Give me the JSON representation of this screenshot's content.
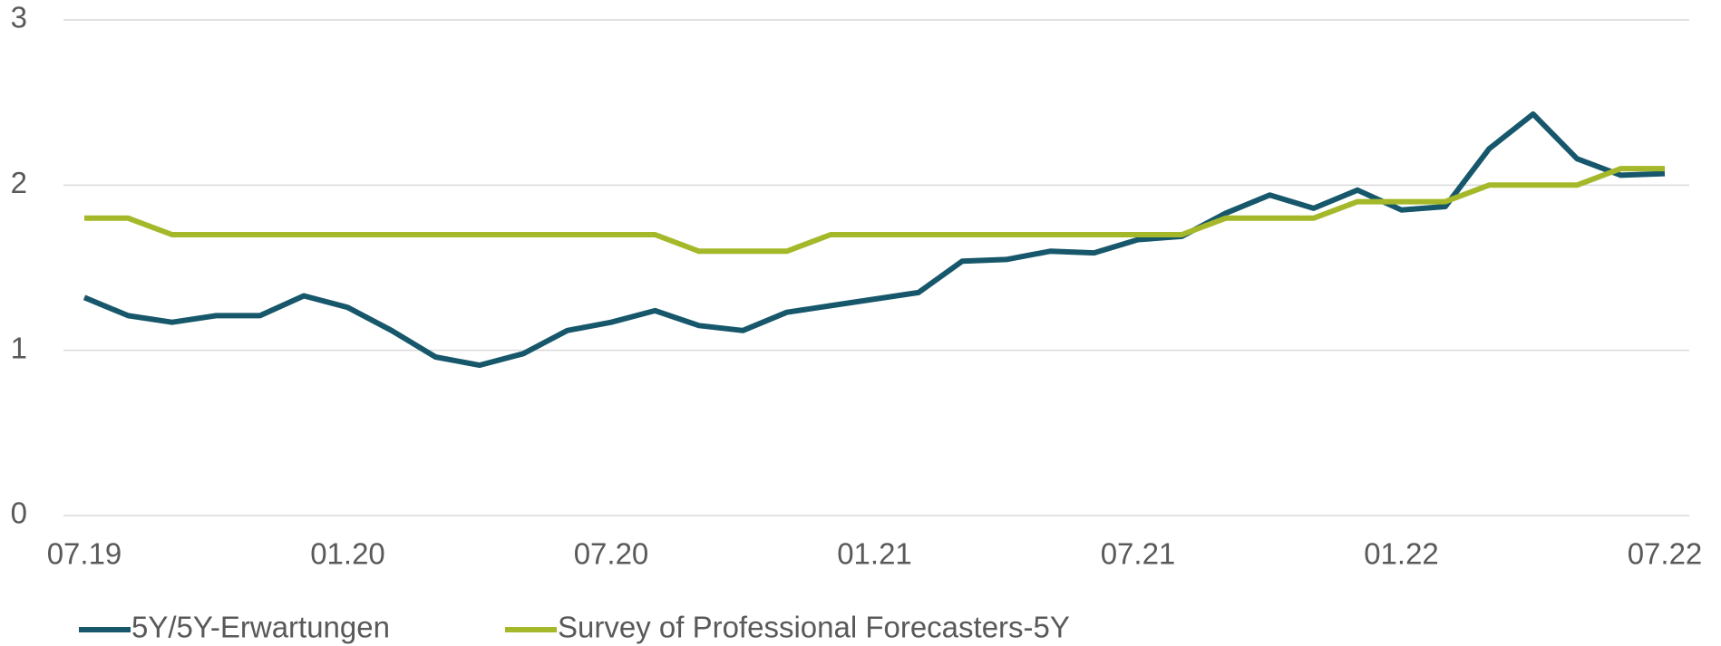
{
  "chart_data": {
    "type": "line",
    "categories": [
      "07.19",
      null,
      null,
      null,
      null,
      null,
      "01.20",
      null,
      null,
      null,
      null,
      null,
      "07.20",
      null,
      null,
      null,
      null,
      null,
      "01.21",
      null,
      null,
      null,
      null,
      null,
      "07.21",
      null,
      null,
      null,
      null,
      null,
      "01.22",
      null,
      null,
      null,
      null,
      null,
      "07.22"
    ],
    "series": [
      {
        "name": "5Y/5Y-Erwartungen",
        "color": "#17576b",
        "values": [
          1.32,
          1.21,
          1.17,
          1.21,
          1.21,
          1.33,
          1.26,
          1.12,
          0.96,
          0.91,
          0.98,
          1.12,
          1.17,
          1.24,
          1.15,
          1.12,
          1.23,
          1.27,
          1.31,
          1.35,
          1.54,
          1.55,
          1.6,
          1.59,
          1.67,
          1.69,
          1.83,
          1.94,
          1.86,
          1.97,
          1.85,
          1.87,
          2.22,
          2.43,
          2.16,
          2.06,
          2.07
        ]
      },
      {
        "name": "Survey of Professional Forecasters-5Y",
        "color": "#a5b82a",
        "values": [
          1.8,
          1.8,
          1.7,
          1.7,
          1.7,
          1.7,
          1.7,
          1.7,
          1.7,
          1.7,
          1.7,
          1.7,
          1.7,
          1.7,
          1.6,
          1.6,
          1.6,
          1.7,
          1.7,
          1.7,
          1.7,
          1.7,
          1.7,
          1.7,
          1.7,
          1.7,
          1.8,
          1.8,
          1.8,
          1.9,
          1.9,
          1.9,
          2.0,
          2.0,
          2.0,
          2.1,
          2.1
        ]
      }
    ],
    "ylim": [
      0,
      3
    ],
    "yticks": [
      0,
      1,
      2,
      3
    ],
    "grid": true,
    "legend": "bottom"
  }
}
